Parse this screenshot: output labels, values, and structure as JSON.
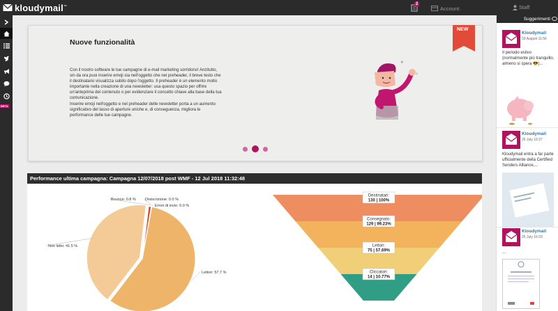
{
  "app": {
    "logo_text": "kloudymail",
    "logo_tm": "™",
    "notification_count": "2",
    "account_label": "Account:",
    "user_label": "Staff"
  },
  "sidebar": {
    "items": [
      {
        "name": "expand",
        "icon": "chevron-right-icon"
      },
      {
        "name": "home",
        "icon": "home-icon"
      },
      {
        "name": "lists",
        "icon": "list-icon"
      },
      {
        "name": "messages",
        "icon": "bird-icon"
      },
      {
        "name": "campaigns",
        "icon": "megaphone-icon"
      },
      {
        "name": "chat",
        "icon": "chat-icon"
      },
      {
        "name": "stats",
        "icon": "clock-icon"
      }
    ],
    "beta_label": "BETA"
  },
  "news": {
    "title": "Nuove funzionalità",
    "ribbon_label": "NEW",
    "paragraph1": "Con il nostro software le tue campagne di e-mail marketing sorridono! Anzitutto, sin da ora puoi inserire emoji sia nell'oggetto che nel preheader, il breve testo che il destinatario visualizza subito dopo l'oggetto. Il preheader è un elemento molto importante nella creazione di una newsletter: usa questo spazio per offrire un'anteprima del contenuto o per evidenziare il concetto chiave alla base della tua comunicazione.",
    "paragraph2": "Inserire emoji nell'oggetto e nel preheader delle newsletter porta a un aumento significativo del tasso di aperture uniche e, di conseguenza, migliora le performance delle tue campagne.",
    "slide_count": 3,
    "active_slide": 2
  },
  "performance": {
    "title": "Performance ultima campagna: Campagna 12/07/2018 post WMF - 12 Jul 2018 11:32:48"
  },
  "chart_data": [
    {
      "type": "pie",
      "slices": [
        {
          "label": "Lettori",
          "value": 57.7,
          "color": "#eeb46a"
        },
        {
          "label": "Non letto",
          "value": 41.5,
          "color": "#f4cb96"
        },
        {
          "label": "Bounce",
          "value": 0.8,
          "color": "#d2492f"
        },
        {
          "label": "Disiscrizione",
          "value": 0.0,
          "color": "#c0166e"
        },
        {
          "label": "Errori di invio",
          "value": 0.0,
          "color": "#999999"
        }
      ],
      "labels": [
        "Lettori: 57.7 %",
        "Non letto: 41.5 %",
        "Bounce: 0.8 %",
        "Disiscrizione: 0.0 %",
        "Errori di invio: 0.0 %"
      ]
    },
    {
      "type": "funnel",
      "stages": [
        {
          "label": "Destinatari:",
          "count": 130,
          "percent": 100,
          "value_text": "130 | 100%",
          "color": "#ee8d5f"
        },
        {
          "label": "Consegnato:",
          "count": 129,
          "percent": 99.23,
          "value_text": "129 | 99.23%",
          "color": "#f2b35c"
        },
        {
          "label": "Lettori:",
          "count": 75,
          "percent": 57.69,
          "value_text": "75 | 57.69%",
          "color": "#f0cf78"
        },
        {
          "label": "Cliccatori:",
          "count": 14,
          "percent": 10.77,
          "value_text": "14 | 10.77%",
          "color": "#2f9e85"
        }
      ]
    }
  ],
  "suggestions": {
    "header": "Suggerimenti",
    "posts": [
      {
        "author": "Kloudymail",
        "date": "03 August 11:56",
        "text": "Il periodo estivo (normalmente più tranquillo, almeno si spera 😎)..."
      },
      {
        "author": "Kloudymail",
        "date": "26 July 16:37",
        "text": "Kloudymail entra a far parte ufficialmente della Certified Senders Alliance,..."
      },
      {
        "author": "Kloudymail",
        "date": "25 July 16:33",
        "text": "..."
      }
    ]
  },
  "colors": {
    "brand": "#b0145e",
    "topbar": "#2b2b2b",
    "link": "#2a7ab0"
  }
}
